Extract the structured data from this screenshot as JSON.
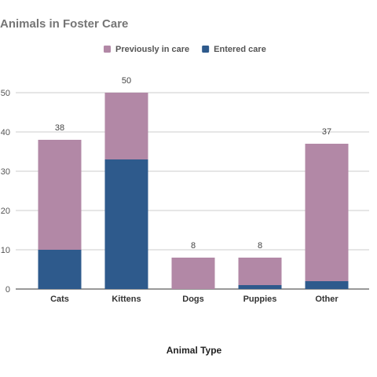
{
  "chart_data": {
    "type": "bar",
    "stacked": true,
    "title": "Animals in Foster Care",
    "xlabel": "Animal Type",
    "ylabel": "",
    "categories": [
      "Cats",
      "Kittens",
      "Dogs",
      "Puppies",
      "Other"
    ],
    "series": [
      {
        "name": "Entered care",
        "values": [
          10,
          33,
          0,
          1,
          2
        ],
        "color": "#2e5a8c"
      },
      {
        "name": "Previously in care",
        "values": [
          28,
          17,
          8,
          7,
          35
        ],
        "color": "#b288a6"
      }
    ],
    "totals": [
      "38",
      "50",
      "8",
      "8",
      "37"
    ],
    "ylim": [
      0,
      50
    ],
    "yticks": [
      "0",
      "10",
      "20",
      "30",
      "40",
      "50"
    ],
    "grid": true,
    "legend": {
      "position": "top",
      "order": [
        "Previously in care",
        "Entered care"
      ]
    }
  }
}
